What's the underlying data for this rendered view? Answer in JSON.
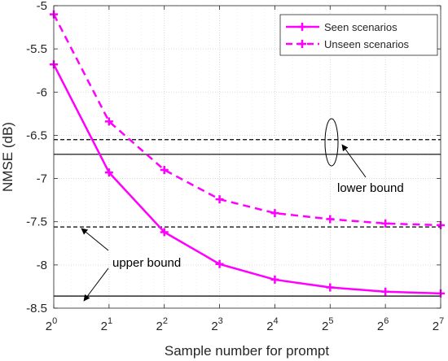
{
  "chart_data": {
    "type": "line",
    "xlabel": "Sample number for prompt",
    "ylabel": "NMSE (dB)",
    "x_base": "2",
    "x_exponents": [
      0,
      1,
      2,
      3,
      4,
      5,
      6,
      7
    ],
    "x_tick_labels": [
      "0",
      "1",
      "2",
      "3",
      "4",
      "5",
      "6",
      "7"
    ],
    "xlim": [
      0,
      7
    ],
    "ylim": [
      -8.5,
      -5
    ],
    "y_ticks": [
      -5,
      -5.5,
      -6,
      -6.5,
      -7,
      -7.5,
      -8,
      -8.5
    ],
    "y_tick_labels": [
      "-5",
      "-5.5",
      "-6",
      "-6.5",
      "-7",
      "-7.5",
      "-8",
      "-8.5"
    ],
    "x_scale": "log2",
    "grid": "dotted",
    "legend_position": "top-right",
    "series": [
      {
        "name": "Seen scenarios",
        "style": "solid",
        "marker": "plus",
        "color": "#ff00ff",
        "values": [
          -5.68,
          -6.93,
          -7.62,
          -7.99,
          -8.17,
          -8.26,
          -8.31,
          -8.33
        ]
      },
      {
        "name": "Unseen scenarios",
        "style": "dashed",
        "marker": "plus",
        "color": "#ff00ff",
        "values": [
          -5.1,
          -6.34,
          -6.9,
          -7.24,
          -7.4,
          -7.47,
          -7.52,
          -7.54
        ]
      }
    ],
    "reference_lines": [
      {
        "group": "lower",
        "style": "dashed",
        "y": -6.55,
        "color": "#000000"
      },
      {
        "group": "lower",
        "style": "solid",
        "y": -6.72,
        "color": "#000000"
      },
      {
        "group": "upper",
        "style": "dashed",
        "y": -7.56,
        "color": "#000000"
      },
      {
        "group": "upper",
        "style": "solid",
        "y": -8.36,
        "color": "#000000"
      }
    ],
    "annotations": [
      {
        "text": "lower bound",
        "points_to": "lower bound lines"
      },
      {
        "text": "upper bound",
        "points_to": "upper bound lines"
      }
    ]
  }
}
